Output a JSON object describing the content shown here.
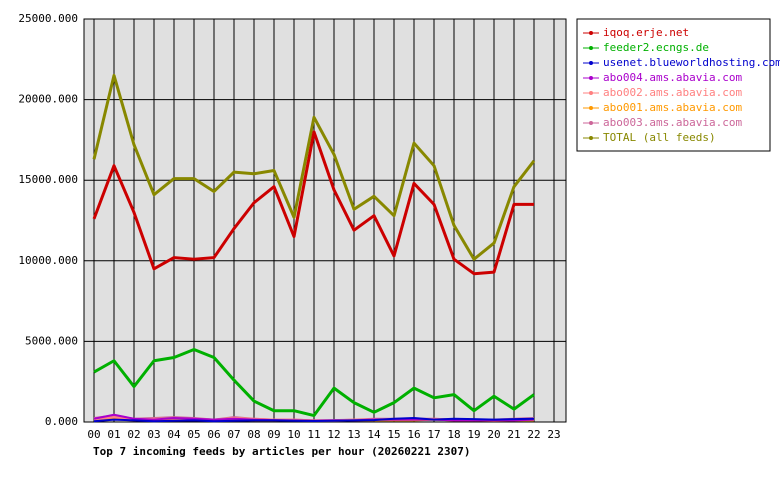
{
  "chart_data": {
    "type": "line",
    "title": "Top 7 incoming feeds by articles per hour (20260221 2307)",
    "categories": [
      "00",
      "01",
      "02",
      "03",
      "04",
      "05",
      "06",
      "07",
      "08",
      "09",
      "10",
      "11",
      "12",
      "13",
      "14",
      "15",
      "16",
      "17",
      "18",
      "19",
      "20",
      "21",
      "22",
      "23"
    ],
    "ylim": [
      0,
      25000
    ],
    "yticks": [
      {
        "value": 0,
        "label": "0.000"
      },
      {
        "value": 5000,
        "label": "5000.000"
      },
      {
        "value": 10000,
        "label": "10000.000"
      },
      {
        "value": 15000,
        "label": "15000.000"
      },
      {
        "value": 20000,
        "label": "20000.000"
      },
      {
        "value": 25000,
        "label": "25000.000"
      }
    ],
    "grid": true,
    "legend": "right",
    "series": [
      {
        "name": "iqoq.erje.net",
        "color": "#cc0000",
        "values": [
          12600,
          15900,
          13000,
          9500,
          10200,
          10100,
          10200,
          12000,
          13600,
          14600,
          11500,
          18000,
          14400,
          11900,
          12800,
          10300,
          14800,
          13500,
          10100,
          9200,
          9300,
          13500,
          13500,
          null
        ]
      },
      {
        "name": "feeder2.ecngs.de",
        "color": "#00b000",
        "values": [
          3100,
          3800,
          2200,
          3800,
          4000,
          4500,
          4000,
          2600,
          1300,
          700,
          700,
          400,
          2100,
          1200,
          600,
          1200,
          2100,
          1500,
          1700,
          700,
          1600,
          800,
          1700,
          null
        ]
      },
      {
        "name": "usenet.blueworldhosting.com",
        "color": "#0000cc",
        "values": [
          50,
          150,
          100,
          50,
          80,
          100,
          50,
          80,
          100,
          100,
          80,
          60,
          80,
          100,
          120,
          200,
          250,
          150,
          200,
          180,
          150,
          180,
          200,
          null
        ]
      },
      {
        "name": "abo004.ams.abavia.com",
        "color": "#aa00cc",
        "values": [
          200,
          450,
          200,
          150,
          250,
          200,
          150,
          200,
          150,
          120,
          100,
          80,
          100,
          100,
          150,
          150,
          150,
          150,
          100,
          100,
          100,
          100,
          150,
          null
        ]
      },
      {
        "name": "abo002.ams.abavia.com",
        "color": "#ff8080",
        "values": [
          150,
          300,
          150,
          200,
          200,
          200,
          150,
          250,
          200,
          150,
          150,
          100,
          100,
          150,
          150,
          150,
          150,
          200,
          150,
          150,
          100,
          150,
          200,
          null
        ]
      },
      {
        "name": "abo001.ams.abavia.com",
        "color": "#ff9900",
        "values": [
          100,
          200,
          100,
          100,
          150,
          150,
          100,
          150,
          100,
          100,
          100,
          80,
          80,
          100,
          100,
          100,
          100,
          150,
          100,
          100,
          80,
          100,
          100,
          null
        ]
      },
      {
        "name": "abo003.ams.abavia.com",
        "color": "#cc6699",
        "values": [
          250,
          400,
          200,
          250,
          300,
          250,
          150,
          300,
          200,
          150,
          150,
          100,
          120,
          150,
          200,
          200,
          200,
          200,
          150,
          150,
          150,
          200,
          250,
          null
        ]
      },
      {
        "name": "TOTAL (all feeds)",
        "color": "#888800",
        "values": [
          16300,
          21500,
          17200,
          14100,
          15100,
          15100,
          14300,
          15500,
          15400,
          15600,
          12700,
          18900,
          16600,
          13200,
          14000,
          12800,
          17300,
          15900,
          12200,
          10100,
          11100,
          14600,
          16200,
          null
        ]
      }
    ]
  }
}
